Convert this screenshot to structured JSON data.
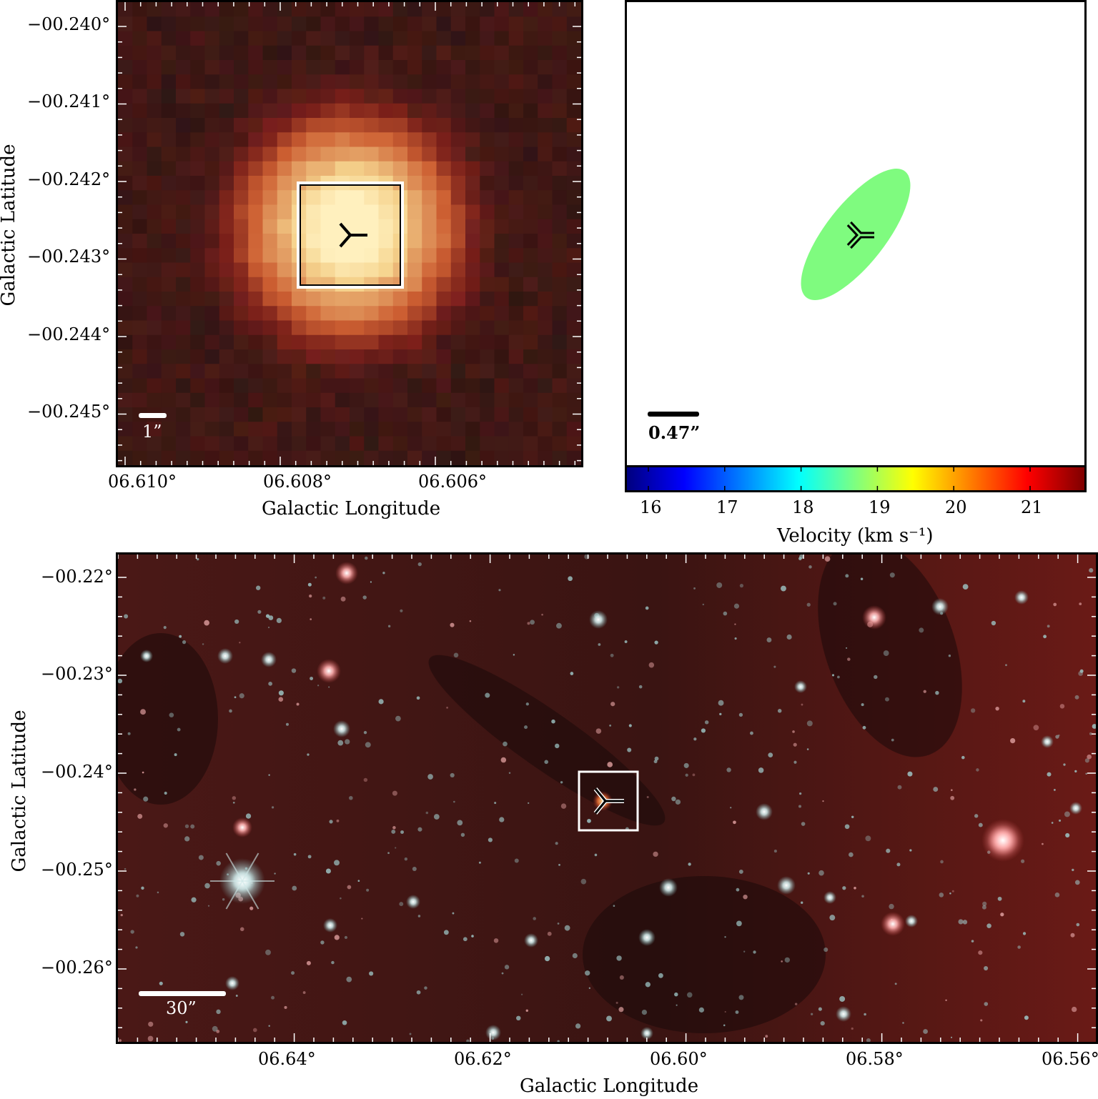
{
  "panels": {
    "zoom": {
      "xlabel": "Galactic Longitude",
      "ylabel": "Galactic Latitude",
      "xticks": [
        "06.610°",
        "06.608°",
        "06.606°"
      ],
      "yticks": [
        "−00.240°",
        "−00.241°",
        "−00.242°",
        "−00.243°",
        "−00.244°",
        "−00.245°"
      ],
      "scalebar_label": "1”"
    },
    "velocity": {
      "scalebar_label": "0.47”",
      "colorbar_label": "Velocity (km s⁻¹)",
      "colorbar_ticks": [
        "16",
        "17",
        "18",
        "19",
        "20",
        "21"
      ],
      "colormap": [
        "#00007f",
        "#0000ff",
        "#007fff",
        "#00ffff",
        "#7fff7f",
        "#ffff00",
        "#ff7f00",
        "#ff0000",
        "#7f0000"
      ],
      "ellipse_color": "#7ffb7f"
    },
    "wide": {
      "xlabel": "Galactic Longitude",
      "ylabel": "Galactic Latitude",
      "xticks": [
        "06.64°",
        "06.62°",
        "06.60°",
        "06.58°",
        "06.56°"
      ],
      "yticks": [
        "−00.22°",
        "−00.23°",
        "−00.24°",
        "−00.25°",
        "−00.26°"
      ],
      "scalebar_label": "30”"
    }
  },
  "chart_data": [
    {
      "type": "heatmap",
      "title": "",
      "xlabel": "Galactic Longitude",
      "ylabel": "Galactic Latitude",
      "xlim": [
        6.6103,
        6.6044
      ],
      "ylim": [
        -0.24568,
        -0.23967
      ],
      "source_marker": {
        "l": 6.6075,
        "b": -0.24268
      }
    },
    {
      "type": "scatter",
      "title": "",
      "colorbar_label": "Velocity (km s⁻¹)",
      "colorbar_range": [
        15.7,
        21.7
      ],
      "maser_velocity_color": "#7ffb7f"
    },
    {
      "type": "heatmap",
      "title": "",
      "xlabel": "Galactic Longitude",
      "ylabel": "Galactic Latitude",
      "xlim": [
        6.6578,
        6.5573
      ],
      "ylim": [
        -0.26735,
        -0.21795
      ],
      "source_marker": {
        "l": 6.6075,
        "b": -0.2425
      }
    }
  ]
}
